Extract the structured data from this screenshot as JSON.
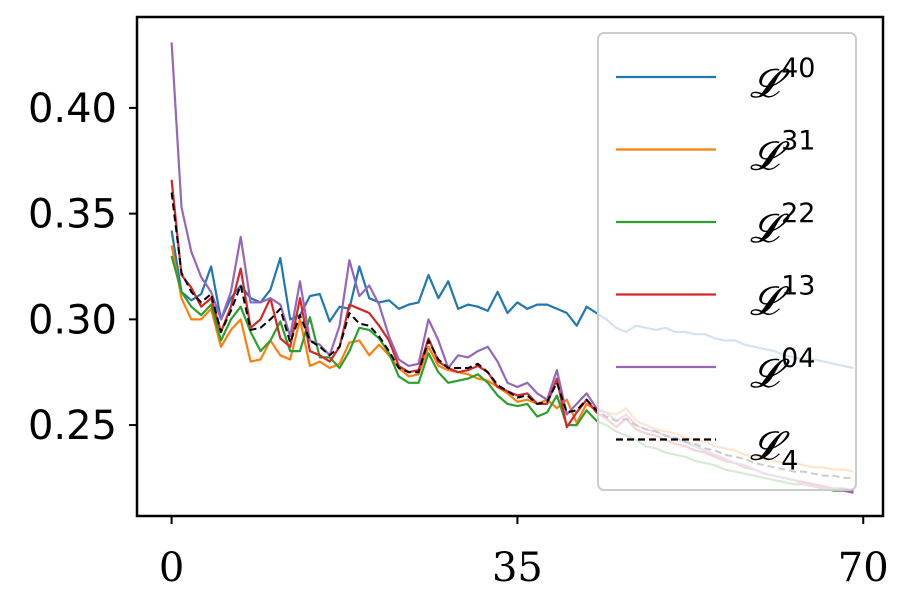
{
  "chart_data": {
    "type": "line",
    "title": "",
    "xlabel": "",
    "ylabel": "",
    "xlim": [
      -3.5,
      72
    ],
    "ylim": [
      0.207,
      0.443
    ],
    "xticks": [
      0,
      35,
      70
    ],
    "xtick_labels": [
      "0",
      "35",
      "70"
    ],
    "yticks": [
      0.25,
      0.3,
      0.35,
      0.4
    ],
    "ytick_labels": [
      "0.25",
      "0.30",
      "0.35",
      "0.40"
    ],
    "grid": false,
    "legend_position": "top-right",
    "series": [
      {
        "name": "40",
        "label_base": "𝓛",
        "label_sup": "40",
        "color": "#1f77b4",
        "dash": "solid",
        "x": [
          0,
          1,
          2,
          3,
          4,
          5,
          6,
          7,
          8,
          9,
          10,
          11,
          12,
          13,
          14,
          15,
          16,
          17,
          18,
          19,
          20,
          21,
          22,
          23,
          24,
          25,
          26,
          27,
          28,
          29,
          30,
          31,
          32,
          33,
          34,
          35,
          36,
          37,
          38,
          39,
          40,
          41,
          42,
          43,
          44,
          45,
          46,
          47,
          48,
          49,
          50,
          51,
          52,
          53,
          54,
          55,
          56,
          57,
          58,
          59,
          60,
          61,
          62,
          63,
          64,
          65,
          66,
          67,
          68,
          69
        ],
        "values": [
          0.342,
          0.313,
          0.309,
          0.312,
          0.325,
          0.3,
          0.31,
          0.316,
          0.31,
          0.308,
          0.314,
          0.329,
          0.3,
          0.302,
          0.311,
          0.312,
          0.299,
          0.306,
          0.305,
          0.325,
          0.31,
          0.308,
          0.309,
          0.305,
          0.307,
          0.308,
          0.321,
          0.31,
          0.318,
          0.305,
          0.307,
          0.306,
          0.304,
          0.313,
          0.303,
          0.308,
          0.305,
          0.307,
          0.307,
          0.305,
          0.303,
          0.297,
          0.306,
          0.303,
          0.3,
          0.296,
          0.294,
          0.297,
          0.296,
          0.295,
          0.296,
          0.294,
          0.294,
          0.293,
          0.293,
          0.291,
          0.29,
          0.29,
          0.288,
          0.287,
          0.286,
          0.285,
          0.283,
          0.282,
          0.281,
          0.281,
          0.28,
          0.279,
          0.278,
          0.277
        ]
      },
      {
        "name": "31",
        "label_base": "𝓛",
        "label_sup": "31",
        "color": "#ff7f0e",
        "dash": "solid",
        "x": [
          0,
          1,
          2,
          3,
          4,
          5,
          6,
          7,
          8,
          9,
          10,
          11,
          12,
          13,
          14,
          15,
          16,
          17,
          18,
          19,
          20,
          21,
          22,
          23,
          24,
          25,
          26,
          27,
          28,
          29,
          30,
          31,
          32,
          33,
          34,
          35,
          36,
          37,
          38,
          39,
          40,
          41,
          42,
          43,
          44,
          45,
          46,
          47,
          48,
          49,
          50,
          51,
          52,
          53,
          54,
          55,
          56,
          57,
          58,
          59,
          60,
          61,
          62,
          63,
          64,
          65,
          66,
          67,
          68,
          69
        ],
        "values": [
          0.335,
          0.31,
          0.3,
          0.3,
          0.305,
          0.287,
          0.295,
          0.3,
          0.28,
          0.281,
          0.29,
          0.283,
          0.281,
          0.3,
          0.278,
          0.28,
          0.277,
          0.279,
          0.289,
          0.29,
          0.283,
          0.288,
          0.283,
          0.277,
          0.273,
          0.274,
          0.287,
          0.278,
          0.276,
          0.275,
          0.274,
          0.272,
          0.271,
          0.268,
          0.265,
          0.261,
          0.262,
          0.26,
          0.262,
          0.258,
          0.262,
          0.251,
          0.26,
          0.257,
          0.256,
          0.255,
          0.258,
          0.252,
          0.25,
          0.248,
          0.247,
          0.246,
          0.244,
          0.243,
          0.242,
          0.24,
          0.239,
          0.238,
          0.236,
          0.235,
          0.234,
          0.233,
          0.232,
          0.232,
          0.231,
          0.23,
          0.23,
          0.229,
          0.229,
          0.228
        ]
      },
      {
        "name": "22",
        "label_base": "𝓛",
        "label_sup": "22",
        "color": "#2ca02c",
        "dash": "solid",
        "x": [
          0,
          1,
          2,
          3,
          4,
          5,
          6,
          7,
          8,
          9,
          10,
          11,
          12,
          13,
          14,
          15,
          16,
          17,
          18,
          19,
          20,
          21,
          22,
          23,
          24,
          25,
          26,
          27,
          28,
          29,
          30,
          31,
          32,
          33,
          34,
          35,
          36,
          37,
          38,
          39,
          40,
          41,
          42,
          43,
          44,
          45,
          46,
          47,
          48,
          49,
          50,
          51,
          52,
          53,
          54,
          55,
          56,
          57,
          58,
          59,
          60,
          61,
          62,
          63,
          64,
          65,
          66,
          67,
          68,
          69
        ],
        "values": [
          0.33,
          0.313,
          0.306,
          0.302,
          0.307,
          0.29,
          0.3,
          0.306,
          0.294,
          0.285,
          0.29,
          0.299,
          0.285,
          0.285,
          0.301,
          0.282,
          0.282,
          0.277,
          0.285,
          0.296,
          0.295,
          0.291,
          0.284,
          0.273,
          0.27,
          0.27,
          0.284,
          0.275,
          0.27,
          0.271,
          0.272,
          0.274,
          0.27,
          0.264,
          0.26,
          0.259,
          0.26,
          0.254,
          0.256,
          0.264,
          0.25,
          0.25,
          0.257,
          0.252,
          0.25,
          0.247,
          0.245,
          0.243,
          0.24,
          0.239,
          0.237,
          0.236,
          0.235,
          0.233,
          0.232,
          0.231,
          0.229,
          0.228,
          0.227,
          0.226,
          0.225,
          0.224,
          0.223,
          0.222,
          0.222,
          0.221,
          0.22,
          0.219,
          0.219,
          0.218
        ]
      },
      {
        "name": "13",
        "label_base": "𝓛",
        "label_sup": "13",
        "color": "#d62728",
        "dash": "solid",
        "x": [
          0,
          1,
          2,
          3,
          4,
          5,
          6,
          7,
          8,
          9,
          10,
          11,
          12,
          13,
          14,
          15,
          16,
          17,
          18,
          19,
          20,
          21,
          22,
          23,
          24,
          25,
          26,
          27,
          28,
          29,
          30,
          31,
          32,
          33,
          34,
          35,
          36,
          37,
          38,
          39,
          40,
          41,
          42,
          43,
          44,
          45,
          46,
          47,
          48,
          49,
          50,
          51,
          52,
          53,
          54,
          55,
          56,
          57,
          58,
          59,
          60,
          61,
          62,
          63,
          64,
          65,
          66,
          67,
          68,
          69
        ],
        "values": [
          0.366,
          0.321,
          0.315,
          0.306,
          0.31,
          0.294,
          0.306,
          0.324,
          0.296,
          0.3,
          0.31,
          0.291,
          0.287,
          0.31,
          0.285,
          0.283,
          0.28,
          0.287,
          0.307,
          0.305,
          0.303,
          0.297,
          0.29,
          0.278,
          0.275,
          0.276,
          0.291,
          0.28,
          0.277,
          0.275,
          0.276,
          0.278,
          0.275,
          0.268,
          0.266,
          0.264,
          0.265,
          0.26,
          0.26,
          0.272,
          0.249,
          0.256,
          0.262,
          0.256,
          0.253,
          0.249,
          0.253,
          0.248,
          0.246,
          0.245,
          0.243,
          0.241,
          0.24,
          0.238,
          0.237,
          0.235,
          0.233,
          0.232,
          0.23,
          0.229,
          0.227,
          0.226,
          0.225,
          0.224,
          0.223,
          0.222,
          0.221,
          0.22,
          0.22,
          0.219
        ]
      },
      {
        "name": "04",
        "label_base": "𝓛",
        "label_sup": "04",
        "color": "#9467bd",
        "dash": "solid",
        "x": [
          0,
          1,
          2,
          3,
          4,
          5,
          6,
          7,
          8,
          9,
          10,
          11,
          12,
          13,
          14,
          15,
          16,
          17,
          18,
          19,
          20,
          21,
          22,
          23,
          24,
          25,
          26,
          27,
          28,
          29,
          30,
          31,
          32,
          33,
          34,
          35,
          36,
          37,
          38,
          39,
          40,
          41,
          42,
          43,
          44,
          45,
          46,
          47,
          48,
          49,
          50,
          51,
          52,
          53,
          54,
          55,
          56,
          57,
          58,
          59,
          60,
          61,
          62,
          63,
          64,
          65,
          66,
          67,
          68,
          69
        ],
        "values": [
          0.431,
          0.353,
          0.332,
          0.32,
          0.313,
          0.3,
          0.313,
          0.339,
          0.308,
          0.308,
          0.31,
          0.307,
          0.292,
          0.318,
          0.29,
          0.288,
          0.283,
          0.297,
          0.328,
          0.311,
          0.316,
          0.307,
          0.292,
          0.281,
          0.278,
          0.279,
          0.3,
          0.29,
          0.277,
          0.283,
          0.282,
          0.285,
          0.287,
          0.28,
          0.27,
          0.268,
          0.27,
          0.265,
          0.262,
          0.276,
          0.255,
          0.26,
          0.265,
          0.258,
          0.256,
          0.252,
          0.255,
          0.25,
          0.248,
          0.247,
          0.245,
          0.244,
          0.242,
          0.24,
          0.238,
          0.236,
          0.234,
          0.232,
          0.231,
          0.229,
          0.227,
          0.226,
          0.225,
          0.224,
          0.222,
          0.221,
          0.22,
          0.22,
          0.219,
          0.218
        ]
      },
      {
        "name": "4",
        "label_base": "𝓛",
        "label_sub": "4",
        "color": "#000000",
        "dash": "dashed",
        "x": [
          0,
          1,
          2,
          3,
          4,
          5,
          6,
          7,
          8,
          9,
          10,
          11,
          12,
          13,
          14,
          15,
          16,
          17,
          18,
          19,
          20,
          21,
          22,
          23,
          24,
          25,
          26,
          27,
          28,
          29,
          30,
          31,
          32,
          33,
          34,
          35,
          36,
          37,
          38,
          39,
          40,
          41,
          42,
          43,
          44,
          45,
          46,
          47,
          48,
          49,
          50,
          51,
          52,
          53,
          54,
          55,
          56,
          57,
          58,
          59,
          60,
          61,
          62,
          63,
          64,
          65,
          66,
          67,
          68,
          69
        ],
        "values": [
          0.36,
          0.322,
          0.313,
          0.308,
          0.312,
          0.294,
          0.304,
          0.316,
          0.295,
          0.296,
          0.3,
          0.305,
          0.289,
          0.302,
          0.29,
          0.287,
          0.283,
          0.287,
          0.303,
          0.298,
          0.297,
          0.292,
          0.285,
          0.277,
          0.275,
          0.275,
          0.29,
          0.281,
          0.277,
          0.277,
          0.277,
          0.279,
          0.275,
          0.269,
          0.266,
          0.263,
          0.264,
          0.26,
          0.261,
          0.27,
          0.256,
          0.257,
          0.262,
          0.257,
          0.254,
          0.252,
          0.253,
          0.25,
          0.248,
          0.247,
          0.245,
          0.244,
          0.242,
          0.241,
          0.239,
          0.238,
          0.236,
          0.235,
          0.234,
          0.232,
          0.231,
          0.23,
          0.229,
          0.228,
          0.228,
          0.227,
          0.226,
          0.226,
          0.225,
          0.225
        ]
      }
    ]
  }
}
